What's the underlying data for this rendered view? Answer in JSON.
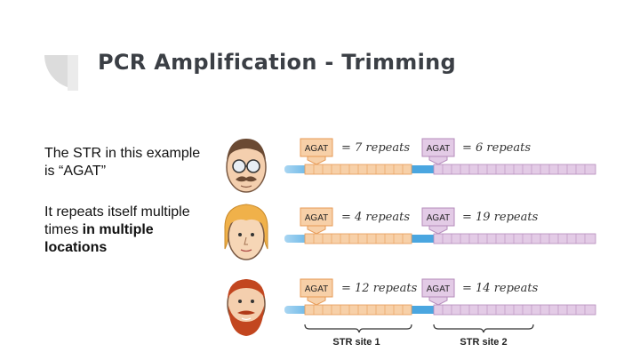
{
  "slide": {
    "title": "PCR Amplification - Trimming",
    "paragraph1": "The STR in this example is “AGAT”",
    "paragraph2_plain": "It repeats itself multiple times ",
    "paragraph2_bold1": "in",
    "paragraph2_bold2": "multiple locations"
  },
  "colors": {
    "strand": "#4aa6e0",
    "strand_light": "#a9d6f2",
    "site1_fill": "#f7d0a8",
    "site1_stroke": "#e79a55",
    "site2_fill": "#e3cbe6",
    "site2_stroke": "#b58bbb",
    "deco_gray": "#dcdcdc"
  },
  "diagram": {
    "tag_label": "AGAT",
    "site_labels": [
      "STR site 1",
      "STR site 2"
    ],
    "people": [
      {
        "icon": "person-glasses-mustache-icon",
        "site1": "= 7 repeats",
        "site2": "= 6 repeats"
      },
      {
        "icon": "person-blond-hair-icon",
        "site1": "= 4 repeats",
        "site2": "= 19 repeats"
      },
      {
        "icon": "person-red-beard-icon",
        "site1": "= 12 repeats",
        "site2": "= 14 repeats"
      }
    ]
  }
}
